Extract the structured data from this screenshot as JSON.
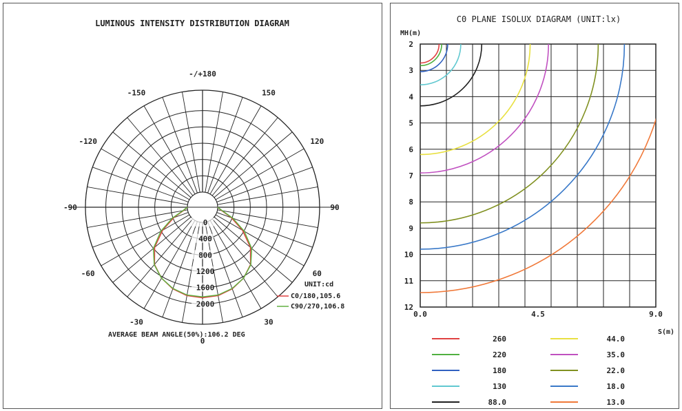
{
  "chart_data": [
    {
      "type": "polar",
      "title": "LUMINOUS INTENSITY DISTRIBUTION DIAGRAM",
      "angle_labels": [
        {
          "angle": 180,
          "text": "-/+180"
        },
        {
          "angle": -150,
          "text": "-150"
        },
        {
          "angle": 150,
          "text": "150"
        },
        {
          "angle": -120,
          "text": "-120"
        },
        {
          "angle": 120,
          "text": "120"
        },
        {
          "angle": -90,
          "text": "-90"
        },
        {
          "angle": 90,
          "text": "90"
        },
        {
          "angle": -60,
          "text": "-60"
        },
        {
          "angle": 60,
          "text": "60"
        },
        {
          "angle": -30,
          "text": "-30"
        },
        {
          "angle": 30,
          "text": "30"
        },
        {
          "angle": 0,
          "text": "0"
        }
      ],
      "radial_ticks": [
        0,
        400,
        800,
        1200,
        1600,
        2000
      ],
      "radial_tick_labels": [
        "0",
        "400",
        "800",
        "1200",
        "1600",
        "2000"
      ],
      "r_max": 2500,
      "unit_label": "UNIT:cd",
      "series": [
        {
          "name": "C0/180,105.6",
          "color": "#e04040",
          "points": [
            [
              0,
              1850
            ],
            [
              10,
              1830
            ],
            [
              20,
              1760
            ],
            [
              30,
              1640
            ],
            [
              40,
              1460
            ],
            [
              50,
              1160
            ],
            [
              60,
              760
            ],
            [
              70,
              380
            ],
            [
              80,
              100
            ],
            [
              90,
              0
            ]
          ]
        },
        {
          "name": "C90/270,106.8",
          "color": "#60b040",
          "points": [
            [
              0,
              1830
            ],
            [
              10,
              1815
            ],
            [
              20,
              1750
            ],
            [
              30,
              1640
            ],
            [
              40,
              1470
            ],
            [
              50,
              1200
            ],
            [
              60,
              810
            ],
            [
              70,
              420
            ],
            [
              80,
              120
            ],
            [
              90,
              0
            ]
          ]
        }
      ],
      "footer": "AVERAGE BEAM ANGLE(50%):106.2 DEG"
    },
    {
      "type": "isolux",
      "title": "C0 PLANE ISOLUX DIAGRAM (UNIT:lx)",
      "ylabel": "MH(m)",
      "xlabel": "S(m)",
      "xlim": [
        0,
        9
      ],
      "ylim": [
        2,
        12
      ],
      "x_tick_labels": [
        "0.0",
        "4.5",
        "9.0"
      ],
      "y_ticks": [
        2,
        3,
        4,
        5,
        6,
        7,
        8,
        9,
        10,
        11,
        12
      ],
      "y_tick_labels": [
        "2",
        "3",
        "4",
        "5",
        "6",
        "7",
        "8",
        "9",
        "10",
        "11",
        "12"
      ],
      "contours": [
        {
          "label": "260",
          "color": "#e04040",
          "radius": 0.72
        },
        {
          "label": "220",
          "color": "#50b040",
          "radius": 0.82
        },
        {
          "label": "180",
          "color": "#3060c0",
          "radius": 1.05
        },
        {
          "label": "130",
          "color": "#60c8d0",
          "radius": 1.55
        },
        {
          "label": "88.0",
          "color": "#202020",
          "radius": 2.35
        },
        {
          "label": "44.0",
          "color": "#e8e040",
          "radius": 4.2
        },
        {
          "label": "35.0",
          "color": "#c050c0",
          "radius": 4.9
        },
        {
          "label": "22.0",
          "color": "#809020",
          "radius": 6.8
        },
        {
          "label": "18.0",
          "color": "#3878c8",
          "radius": 7.8
        },
        {
          "label": "13.0",
          "color": "#f07838",
          "radius": 9.45
        }
      ]
    }
  ]
}
